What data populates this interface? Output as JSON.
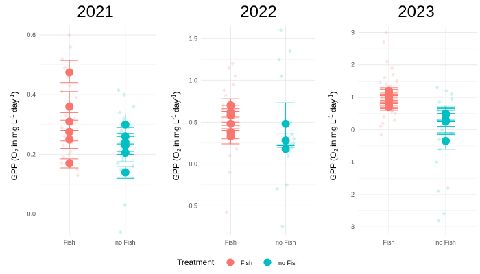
{
  "legend": {
    "title": "Treatment",
    "items": [
      {
        "label": "Fish",
        "color": "#F8766D"
      },
      {
        "label": "no Fish",
        "color": "#00BFC4"
      }
    ]
  },
  "y_axis_label": {
    "prefix": "GPP (O",
    "sub": "2",
    "mid": " in mg L",
    "sup1": "-1",
    "mid2": " day",
    "sup2": "-1",
    "suffix": ")"
  },
  "chart_data": [
    {
      "type": "scatter",
      "title": "2021",
      "categories": [
        "Fish",
        "no Fish"
      ],
      "ylim": [
        -0.07,
        0.63
      ],
      "yticks": [
        0.0,
        0.2,
        0.4,
        0.6
      ],
      "ytick_labels": [
        "0.0",
        "0.2",
        "0.4",
        "0.6"
      ],
      "grid": true,
      "series": [
        {
          "name": "Fish",
          "means": [
            0.475,
            0.36,
            0.31,
            0.275,
            0.25,
            0.17
          ],
          "error_bars": [
            [
              0.44,
              0.515
            ],
            [
              0.315,
              0.41
            ],
            [
              0.28,
              0.34
            ],
            [
              0.245,
              0.305
            ],
            [
              0.22,
              0.285
            ],
            [
              0.155,
              0.185
            ]
          ],
          "raw": [
            0.6,
            0.56,
            0.52,
            0.49,
            0.46,
            0.43,
            0.41,
            0.39,
            0.37,
            0.35,
            0.33,
            0.32,
            0.3,
            0.29,
            0.27,
            0.26,
            0.24,
            0.23,
            0.21,
            0.2,
            0.19,
            0.17,
            0.15,
            0.13
          ]
        },
        {
          "name": "no Fish",
          "means": [
            0.3,
            0.26,
            0.24,
            0.23,
            0.205,
            0.14
          ],
          "error_bars": [
            [
              0.27,
              0.335
            ],
            [
              0.235,
              0.29
            ],
            [
              0.21,
              0.27
            ],
            [
              0.2,
              0.26
            ],
            [
              0.175,
              0.235
            ],
            [
              0.12,
              0.16
            ]
          ],
          "raw": [
            0.415,
            0.4,
            0.36,
            0.34,
            0.32,
            0.3,
            0.29,
            0.28,
            0.27,
            0.26,
            0.25,
            0.24,
            0.23,
            0.22,
            0.21,
            0.2,
            0.19,
            0.18,
            0.17,
            0.16,
            0.15,
            0.12,
            0.03,
            -0.06
          ]
        }
      ]
    },
    {
      "type": "scatter",
      "title": "2022",
      "categories": [
        "Fish",
        "no Fish"
      ],
      "ylim": [
        -0.85,
        1.65
      ],
      "yticks": [
        -0.5,
        0.0,
        0.5,
        1.0,
        1.5
      ],
      "ytick_labels": [
        "-0.5",
        "0.0",
        "0.5",
        "1.0",
        "1.5"
      ],
      "grid": true,
      "series": [
        {
          "name": "Fish",
          "means": [
            0.7,
            0.62,
            0.58,
            0.48,
            0.38,
            0.33
          ],
          "error_bars": [
            [
              0.63,
              0.78
            ],
            [
              0.54,
              0.7
            ],
            [
              0.5,
              0.66
            ],
            [
              0.4,
              0.56
            ],
            [
              0.3,
              0.46
            ],
            [
              0.24,
              0.42
            ]
          ],
          "raw": [
            1.2,
            1.15,
            1.05,
            0.95,
            0.88,
            0.82,
            0.75,
            0.7,
            0.65,
            0.6,
            0.55,
            0.5,
            0.45,
            0.4,
            0.35,
            0.3,
            0.25,
            0.18,
            0.1,
            -0.1,
            -0.58
          ]
        },
        {
          "name": "no Fish",
          "means": [
            0.48,
            0.28,
            0.18
          ],
          "error_bars": [
            [
              0.22,
              0.73
            ],
            [
              0.2,
              0.36
            ],
            [
              0.13,
              0.23
            ]
          ],
          "raw": [
            1.6,
            1.35,
            1.25,
            1.05,
            0.5,
            0.35,
            0.3,
            0.25,
            0.2,
            0.15,
            0.1,
            -0.25,
            -0.3,
            -0.75
          ]
        }
      ]
    },
    {
      "type": "scatter",
      "title": "2023",
      "categories": [
        "Fish",
        "no Fish"
      ],
      "ylim": [
        -3.25,
        3.2
      ],
      "yticks": [
        -3,
        -2,
        -1,
        0,
        1,
        2,
        3
      ],
      "ytick_labels": [
        "-3",
        "-2",
        "-1",
        "0",
        "1",
        "2",
        "3"
      ],
      "grid": true,
      "series": [
        {
          "name": "Fish",
          "means": [
            1.2,
            1.15,
            1.05,
            1.0,
            0.95,
            0.9,
            0.85,
            0.8,
            0.75,
            0.7
          ],
          "error_bars": [
            [
              1.1,
              1.3
            ],
            [
              1.05,
              1.25
            ],
            [
              0.95,
              1.15
            ],
            [
              0.9,
              1.1
            ],
            [
              0.85,
              1.05
            ],
            [
              0.8,
              1.0
            ],
            [
              0.75,
              0.95
            ],
            [
              0.7,
              0.9
            ],
            [
              0.65,
              0.85
            ],
            [
              0.6,
              0.8
            ]
          ],
          "raw": [
            3.0,
            2.7,
            2.1,
            1.9,
            1.7,
            1.6,
            1.5,
            1.45,
            1.4,
            1.35,
            1.3,
            1.25,
            1.2,
            1.15,
            1.1,
            1.05,
            1.0,
            0.95,
            0.9,
            0.85,
            0.8,
            0.75,
            0.7,
            0.65,
            0.6,
            0.55,
            0.5,
            0.4,
            0.3,
            0.2,
            0.1,
            -0.15
          ]
        },
        {
          "name": "no Fish",
          "means": [
            0.5,
            0.45,
            0.3,
            0.25,
            -0.35
          ],
          "error_bars": [
            [
              0.3,
              0.7
            ],
            [
              0.25,
              0.65
            ],
            [
              0.1,
              0.5
            ],
            [
              -0.15,
              0.6
            ],
            [
              -0.6,
              -0.1
            ]
          ],
          "raw": [
            1.3,
            1.2,
            1.1,
            0.95,
            0.85,
            0.7,
            0.6,
            0.5,
            0.4,
            0.3,
            0.2,
            0.1,
            0.0,
            -0.1,
            -0.3,
            -0.6,
            -1.0,
            -1.8,
            -1.9,
            -2.6,
            -2.8
          ]
        }
      ]
    }
  ]
}
